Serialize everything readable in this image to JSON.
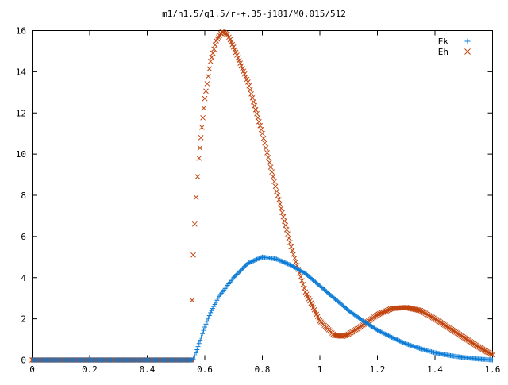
{
  "chart_data": {
    "type": "scatter",
    "title": "m1/n1.5/q1.5/r-+.35-j181/M0.015/512",
    "xlabel": "",
    "ylabel": "",
    "xlim": [
      0,
      1.6
    ],
    "ylim": [
      0,
      16
    ],
    "xticks": [
      "0",
      "0.2",
      "0.4",
      "0.6",
      "0.8",
      "1",
      "1.2",
      "1.4",
      "1.6"
    ],
    "yticks": [
      "0",
      "2",
      "4",
      "6",
      "8",
      "10",
      "12",
      "14",
      "16"
    ],
    "legend_position": "top-right",
    "grid": false,
    "series": [
      {
        "name": "Ek",
        "marker": "+",
        "color": "#0a7bd6",
        "points": [
          [
            0,
            0
          ],
          [
            0.1,
            0
          ],
          [
            0.2,
            0
          ],
          [
            0.3,
            0
          ],
          [
            0.4,
            0
          ],
          [
            0.5,
            0
          ],
          [
            0.555,
            0
          ],
          [
            0.56,
            0.05
          ],
          [
            0.57,
            0.35
          ],
          [
            0.58,
            0.8
          ],
          [
            0.6,
            1.6
          ],
          [
            0.62,
            2.3
          ],
          [
            0.65,
            3.1
          ],
          [
            0.7,
            4.0
          ],
          [
            0.75,
            4.7
          ],
          [
            0.8,
            5.0
          ],
          [
            0.85,
            4.9
          ],
          [
            0.9,
            4.6
          ],
          [
            0.95,
            4.2
          ],
          [
            1.0,
            3.6
          ],
          [
            1.05,
            3.0
          ],
          [
            1.1,
            2.4
          ],
          [
            1.15,
            1.9
          ],
          [
            1.2,
            1.45
          ],
          [
            1.25,
            1.1
          ],
          [
            1.3,
            0.78
          ],
          [
            1.35,
            0.55
          ],
          [
            1.4,
            0.35
          ],
          [
            1.45,
            0.22
          ],
          [
            1.5,
            0.12
          ],
          [
            1.55,
            0.05
          ],
          [
            1.6,
            0.0
          ]
        ]
      },
      {
        "name": "Eh",
        "marker": "x",
        "color": "#c1440e",
        "points": [
          [
            0,
            0
          ],
          [
            0.1,
            0
          ],
          [
            0.2,
            0
          ],
          [
            0.3,
            0
          ],
          [
            0.4,
            0
          ],
          [
            0.5,
            0
          ],
          [
            0.555,
            0
          ],
          [
            0.556,
            2.9
          ],
          [
            0.56,
            5.1
          ],
          [
            0.565,
            6.6
          ],
          [
            0.57,
            7.9
          ],
          [
            0.575,
            8.9
          ],
          [
            0.58,
            9.8
          ],
          [
            0.59,
            11.3
          ],
          [
            0.6,
            12.7
          ],
          [
            0.62,
            14.5
          ],
          [
            0.64,
            15.5
          ],
          [
            0.66,
            15.95
          ],
          [
            0.68,
            15.8
          ],
          [
            0.7,
            15.2
          ],
          [
            0.75,
            13.5
          ],
          [
            0.8,
            11.0
          ],
          [
            0.85,
            8.2
          ],
          [
            0.9,
            5.5
          ],
          [
            0.95,
            3.3
          ],
          [
            1.0,
            1.9
          ],
          [
            1.05,
            1.2
          ],
          [
            1.08,
            1.15
          ],
          [
            1.1,
            1.25
          ],
          [
            1.15,
            1.7
          ],
          [
            1.2,
            2.2
          ],
          [
            1.25,
            2.5
          ],
          [
            1.3,
            2.55
          ],
          [
            1.35,
            2.4
          ],
          [
            1.4,
            2.0
          ],
          [
            1.45,
            1.55
          ],
          [
            1.5,
            1.1
          ],
          [
            1.55,
            0.65
          ],
          [
            1.58,
            0.4
          ],
          [
            1.6,
            0.25
          ]
        ]
      }
    ]
  }
}
